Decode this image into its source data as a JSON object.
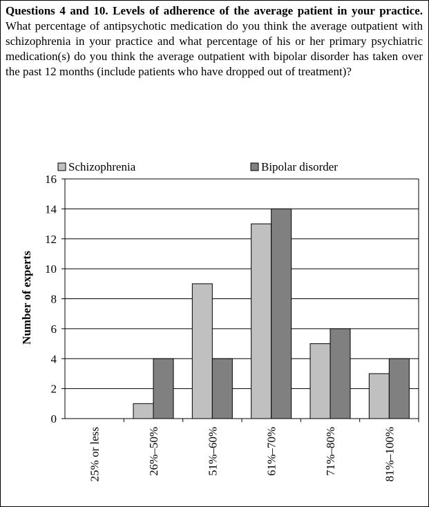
{
  "chart_data": {
    "type": "bar",
    "title": "Questions 4 and 10. Levels of adherence of the average patient in your practice.",
    "subtitle": "What percentage of antipsychotic medication do you think the average outpatient with schizophrenia in your practice and what percentage of his or her primary psychiatric medication(s) do you think the average outpatient with bipolar disorder has taken over the past 12 months (include patients who have dropped out of treatment)?",
    "y_label": "Number of experts",
    "categories": [
      "25% or less",
      "26%–50%",
      "51%–60%",
      "61%–70%",
      "71%–80%",
      "81%–100%"
    ],
    "series": [
      {
        "name": "Schizophrenia",
        "color": "#c0c0c0",
        "values": [
          0,
          1,
          9,
          13,
          5,
          3
        ]
      },
      {
        "name": "Bipolar disorder",
        "color": "#808080",
        "values": [
          0,
          4,
          4,
          14,
          6,
          4
        ]
      }
    ],
    "ylim": [
      0,
      16
    ],
    "yticks": [
      0,
      2,
      4,
      6,
      8,
      10,
      12,
      14,
      16
    ],
    "grid": true
  }
}
